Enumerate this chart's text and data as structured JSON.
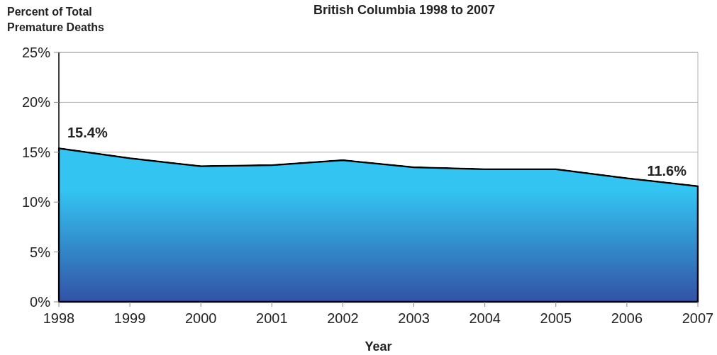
{
  "chart_data": {
    "type": "area",
    "title": "British Columbia 1998 to 2007",
    "ylabel": "Percent of Total\nPremature Deaths",
    "xlabel": "Year",
    "x": [
      1998,
      1999,
      2000,
      2001,
      2002,
      2003,
      2004,
      2005,
      2006,
      2007
    ],
    "series": [
      {
        "color": "#33c4f2",
        "values": [
          15.4,
          14.4,
          13.6,
          13.7,
          14.2,
          13.5,
          13.3,
          13.3,
          12.4,
          11.6
        ],
        "value_labels": [
          "15.4%",
          null,
          null,
          null,
          null,
          null,
          null,
          null,
          null,
          "11.6%"
        ]
      }
    ],
    "xlim": [
      1998,
      2007
    ],
    "xticks": [
      1998,
      1999,
      2000,
      2001,
      2002,
      2003,
      2004,
      2005,
      2006,
      2007
    ],
    "ylim": [
      0,
      25
    ],
    "yticks": [
      {
        "value": 0,
        "label": "0%"
      },
      {
        "value": 5,
        "label": "5%"
      },
      {
        "value": 10,
        "label": "10%"
      },
      {
        "value": 15,
        "label": "15%"
      },
      {
        "value": 20,
        "label": "20%"
      },
      {
        "value": 25,
        "label": "25%"
      }
    ],
    "grid": "y"
  }
}
